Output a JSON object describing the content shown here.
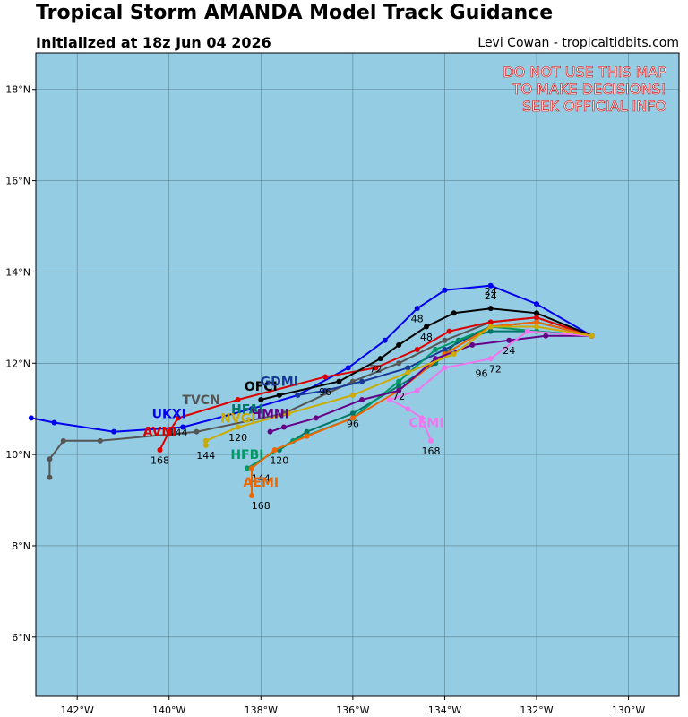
{
  "title": "Tropical Storm AMANDA Model Track Guidance",
  "subtitle": "Initialized at 18z Jun 04 2026",
  "credit": "Levi Cowan - tropicaltidbits.com",
  "warning": [
    "DO NOT USE THIS MAP",
    "TO MAKE DECISIONS!",
    "SEEK OFFICIAL INFO"
  ],
  "colors": {
    "ocean": "#94cde3",
    "grid": "#5a8090",
    "warning": "#e00000"
  },
  "map": {
    "lon_range": [
      -142.9,
      -128.9
    ],
    "lat_range": [
      4.7,
      18.8
    ],
    "lon_ticks": [
      {
        "v": -142,
        "label": "142°W"
      },
      {
        "v": -140,
        "label": "140°W"
      },
      {
        "v": -138,
        "label": "138°W"
      },
      {
        "v": -136,
        "label": "136°W"
      },
      {
        "v": -134,
        "label": "134°W"
      },
      {
        "v": -132,
        "label": "132°W"
      },
      {
        "v": -130,
        "label": "130°W"
      }
    ],
    "lat_ticks": [
      {
        "v": 6,
        "label": "6°N"
      },
      {
        "v": 8,
        "label": "8°N"
      },
      {
        "v": 10,
        "label": "10°N"
      },
      {
        "v": 12,
        "label": "12°N"
      },
      {
        "v": 14,
        "label": "14°N"
      },
      {
        "v": 16,
        "label": "16°N"
      },
      {
        "v": 18,
        "label": "18°N"
      }
    ]
  },
  "tracks": [
    {
      "name": "UKXI",
      "color": "#0000ee",
      "points": [
        [
          -130.8,
          12.6
        ],
        [
          -132.0,
          13.3
        ],
        [
          -133.0,
          13.7
        ],
        [
          -134.0,
          13.6
        ],
        [
          -134.6,
          13.2
        ],
        [
          -135.3,
          12.5
        ],
        [
          -136.1,
          11.9
        ],
        [
          -137.2,
          11.3
        ],
        [
          -138.2,
          11.0
        ],
        [
          -139.7,
          10.6
        ],
        [
          -141.2,
          10.5
        ],
        [
          -142.5,
          10.7
        ],
        [
          -143.0,
          10.8
        ]
      ],
      "hours": [
        {
          "t": "24",
          "lon": -133.0,
          "lat": 13.4
        },
        {
          "t": "48",
          "lon": -134.6,
          "lat": 12.9
        }
      ],
      "label": {
        "lon": -140.0,
        "lat": 10.8
      }
    },
    {
      "name": "TVCN",
      "color": "#555555",
      "points": [
        [
          -130.8,
          12.6
        ],
        [
          -132.0,
          13.0
        ],
        [
          -133.0,
          12.9
        ],
        [
          -134.0,
          12.5
        ],
        [
          -135.0,
          12.0
        ],
        [
          -136.0,
          11.6
        ],
        [
          -137.5,
          10.9
        ],
        [
          -139.4,
          10.5
        ],
        [
          -141.5,
          10.3
        ],
        [
          -142.3,
          10.3
        ],
        [
          -142.6,
          9.9
        ],
        [
          -142.6,
          9.5
        ]
      ],
      "hours": [
        {
          "t": "144",
          "lon": -139.8,
          "lat": 10.4
        }
      ],
      "label": {
        "lon": -139.3,
        "lat": 11.1
      }
    },
    {
      "name": "AVNI",
      "color": "#dd0000",
      "points": [
        [
          -130.8,
          12.6
        ],
        [
          -132.0,
          13.0
        ],
        [
          -133.0,
          12.9
        ],
        [
          -133.9,
          12.7
        ],
        [
          -134.6,
          12.3
        ],
        [
          -135.5,
          11.9
        ],
        [
          -136.6,
          11.7
        ],
        [
          -138.5,
          11.2
        ],
        [
          -139.8,
          10.8
        ],
        [
          -140.0,
          10.5
        ],
        [
          -140.2,
          10.1
        ]
      ],
      "hours": [
        {
          "t": "72",
          "lon": -135.5,
          "lat": 11.8
        },
        {
          "t": "168",
          "lon": -140.2,
          "lat": 9.8
        }
      ],
      "label": {
        "lon": -140.2,
        "lat": 10.4
      }
    },
    {
      "name": "OFCI",
      "color": "#000000",
      "points": [
        [
          -130.8,
          12.6
        ],
        [
          -132.0,
          13.1
        ],
        [
          -133.0,
          13.2
        ],
        [
          -133.8,
          13.1
        ],
        [
          -134.4,
          12.8
        ],
        [
          -135.0,
          12.4
        ],
        [
          -135.4,
          12.1
        ],
        [
          -136.3,
          11.6
        ],
        [
          -137.6,
          11.3
        ],
        [
          -138.0,
          11.2
        ]
      ],
      "hours": [
        {
          "t": "24",
          "lon": -133.0,
          "lat": 13.5
        },
        {
          "t": "48",
          "lon": -134.4,
          "lat": 12.5
        }
      ],
      "label": {
        "lon": -138.0,
        "lat": 11.4
      }
    },
    {
      "name": "GDMI",
      "color": "#1a3a99",
      "points": [
        [
          -130.8,
          12.6
        ],
        [
          -132.0,
          12.9
        ],
        [
          -133.0,
          12.8
        ],
        [
          -134.0,
          12.3
        ],
        [
          -134.8,
          11.9
        ],
        [
          -135.8,
          11.6
        ],
        [
          -136.6,
          11.4
        ],
        [
          -137.2,
          11.3
        ]
      ],
      "hours": [
        {
          "t": "96",
          "lon": -136.6,
          "lat": 11.3
        }
      ],
      "label": {
        "lon": -137.6,
        "lat": 11.5
      }
    },
    {
      "name": "HFAI",
      "color": "#007766",
      "points": [
        [
          -130.8,
          12.6
        ],
        [
          -132.0,
          12.7
        ],
        [
          -133.0,
          12.7
        ],
        [
          -133.7,
          12.5
        ],
        [
          -134.2,
          12.0
        ],
        [
          -135.0,
          11.5
        ],
        [
          -136.0,
          10.9
        ],
        [
          -137.0,
          10.5
        ],
        [
          -137.6,
          10.1
        ]
      ],
      "hours": [
        {
          "t": "96",
          "lon": -136.0,
          "lat": 10.6
        },
        {
          "t": "120",
          "lon": -137.6,
          "lat": 9.8
        }
      ],
      "label": {
        "lon": -138.3,
        "lat": 10.9
      }
    },
    {
      "name": "HFBI",
      "color": "#009966",
      "points": [
        [
          -130.8,
          12.6
        ],
        [
          -132.0,
          12.7
        ],
        [
          -133.0,
          12.8
        ],
        [
          -134.2,
          12.3
        ],
        [
          -135.0,
          11.6
        ],
        [
          -136.0,
          10.8
        ],
        [
          -137.3,
          10.3
        ],
        [
          -138.3,
          9.7
        ]
      ],
      "hours": [
        {
          "t": "144",
          "lon": -138.0,
          "lat": 9.4
        }
      ],
      "label": {
        "lon": -138.3,
        "lat": 9.9
      }
    },
    {
      "name": "AEMI",
      "color": "#ee6600",
      "points": [
        [
          -130.8,
          12.6
        ],
        [
          -132.0,
          12.9
        ],
        [
          -133.0,
          12.8
        ],
        [
          -134.0,
          12.2
        ],
        [
          -135.0,
          11.4
        ],
        [
          -136.0,
          10.8
        ],
        [
          -137.0,
          10.4
        ],
        [
          -137.7,
          10.1
        ],
        [
          -138.2,
          9.7
        ],
        [
          -138.2,
          9.1
        ]
      ],
      "hours": [
        {
          "t": "168",
          "lon": -138.0,
          "lat": 8.8
        }
      ],
      "label": {
        "lon": -138.0,
        "lat": 9.3
      }
    },
    {
      "name": "HMNI",
      "color": "#660088",
      "points": [
        [
          -130.8,
          12.6
        ],
        [
          -131.8,
          12.6
        ],
        [
          -132.6,
          12.5
        ],
        [
          -133.4,
          12.4
        ],
        [
          -134.2,
          12.1
        ],
        [
          -135.0,
          11.4
        ],
        [
          -135.8,
          11.2
        ],
        [
          -136.8,
          10.8
        ],
        [
          -137.5,
          10.6
        ],
        [
          -137.8,
          10.5
        ]
      ],
      "hours": [
        {
          "t": "24",
          "lon": -132.6,
          "lat": 12.2
        },
        {
          "t": "72",
          "lon": -135.0,
          "lat": 11.2
        }
      ],
      "label": {
        "lon": -137.8,
        "lat": 10.8
      }
    },
    {
      "name": "CEMI",
      "color": "#ee77ee",
      "points": [
        [
          -130.8,
          12.6
        ],
        [
          -132.2,
          12.7
        ],
        [
          -133.0,
          12.1
        ],
        [
          -134.0,
          11.9
        ],
        [
          -134.6,
          11.4
        ],
        [
          -135.2,
          11.2
        ],
        [
          -134.8,
          11.0
        ],
        [
          -134.5,
          10.8
        ],
        [
          -134.3,
          10.3
        ]
      ],
      "hours": [
        {
          "t": "72",
          "lon": -132.9,
          "lat": 11.8
        },
        {
          "t": "96",
          "lon": -133.2,
          "lat": 11.7
        },
        {
          "t": "168",
          "lon": -134.3,
          "lat": 10.0
        }
      ],
      "label": {
        "lon": -134.4,
        "lat": 10.6
      }
    },
    {
      "name": "NVGI",
      "color": "#ccaa00",
      "points": [
        [
          -130.8,
          12.6
        ],
        [
          -132.0,
          12.8
        ],
        [
          -133.0,
          12.8
        ],
        [
          -133.8,
          12.2
        ],
        [
          -134.8,
          11.8
        ],
        [
          -136.0,
          11.3
        ],
        [
          -137.4,
          10.9
        ],
        [
          -138.5,
          10.6
        ],
        [
          -139.2,
          10.3
        ],
        [
          -139.2,
          10.2
        ]
      ],
      "hours": [
        {
          "t": "120",
          "lon": -138.5,
          "lat": 10.3
        },
        {
          "t": "144",
          "lon": -139.2,
          "lat": 9.9
        }
      ],
      "label": {
        "lon": -138.5,
        "lat": 10.7
      }
    }
  ],
  "labels_text": {
    "168b": "168"
  }
}
